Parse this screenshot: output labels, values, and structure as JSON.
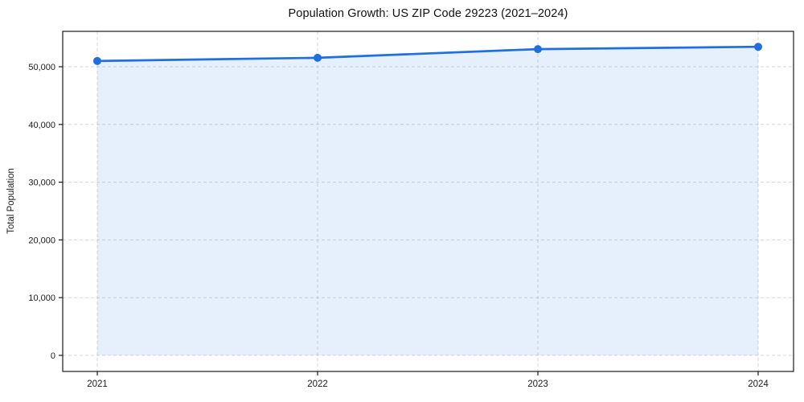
{
  "chart_data": {
    "type": "area",
    "title": "Population Growth: US ZIP Code 29223 (2021–2024)",
    "xlabel": "",
    "ylabel": "Total Population",
    "categories": [
      "2021",
      "2022",
      "2023",
      "2024"
    ],
    "series": [
      {
        "name": "Total Population",
        "values": [
          51000,
          51550,
          53050,
          53450
        ]
      }
    ],
    "ylim": [
      0,
      56000
    ],
    "yticks": [
      0,
      10000,
      20000,
      30000,
      40000,
      50000
    ],
    "ytick_labels": [
      "0",
      "10,000",
      "20,000",
      "30,000",
      "40,000",
      "50,000"
    ],
    "grid": true,
    "grid_style": "dashed",
    "legend_position": "none",
    "colors": {
      "line": "#1f6fe0",
      "marker": "#1f6fe0",
      "fill": "rgba(31,111,224,0.11)",
      "grid": "#c8c8c8",
      "spine": "#1a1a1a",
      "text": "#1a1a1a"
    }
  }
}
